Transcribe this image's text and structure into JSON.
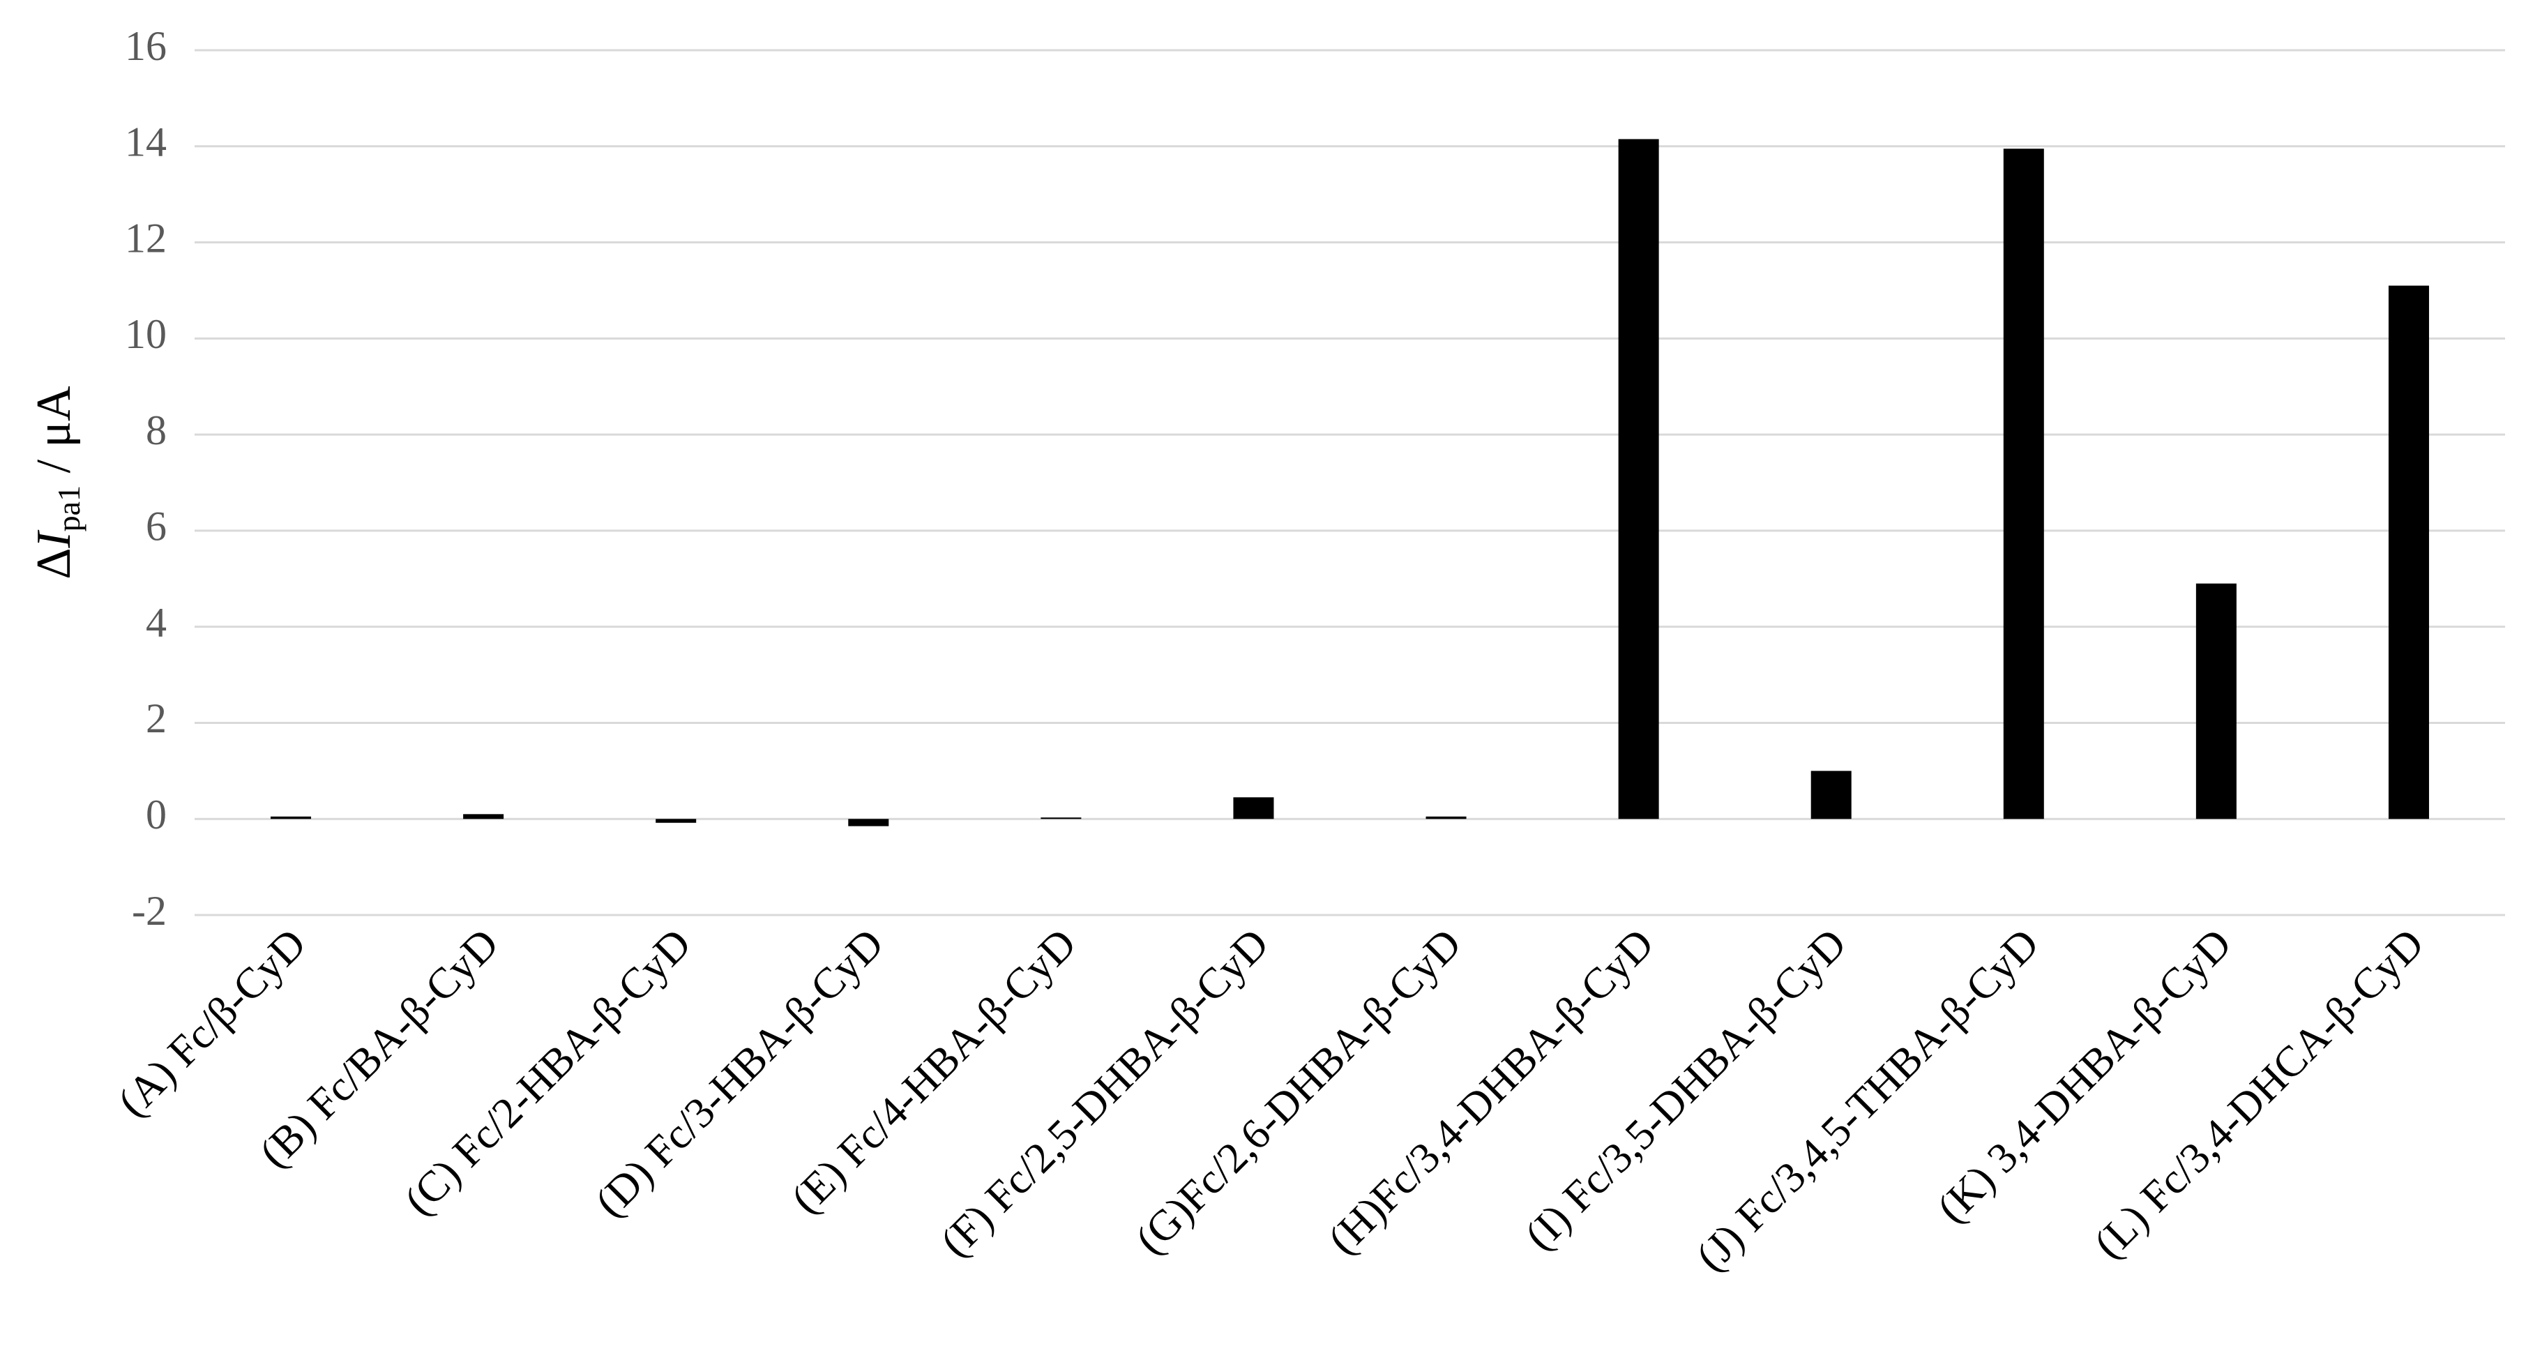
{
  "chart_data": {
    "type": "bar",
    "ylabel": {
      "delta": "Δ",
      "symbol": "I",
      "subscript": "pa1",
      "unit": " / μA"
    },
    "categories": [
      "(A) Fc/β-CyD",
      "(B) Fc/BA-β-CyD",
      "(C) Fc/2-HBA-β-CyD",
      "(D) Fc/3-HBA-β-CyD",
      "(E) Fc/4-HBA-β-CyD",
      "(F) Fc/2,5-DHBA-β-CyD",
      "(G)Fc/2,6-DHBA-β-CyD",
      "(H)Fc/3,4-DHBA-β-CyD",
      "(I) Fc/3,5-DHBA-β-CyD",
      "(J) Fc/3,4,5-THBA-β-CyD",
      "(K) 3,4-DHBA-β-CyD",
      "(L) Fc/3,4-DHCA-β-CyD"
    ],
    "values": [
      0.05,
      0.1,
      -0.08,
      -0.15,
      0.03,
      0.45,
      0.05,
      14.15,
      1.0,
      13.95,
      4.9,
      11.1
    ],
    "color": "#000000",
    "ylim": [
      -2,
      16
    ],
    "yticks": [
      -2,
      0,
      2,
      4,
      6,
      8,
      10,
      12,
      14,
      16
    ],
    "grid": true
  }
}
